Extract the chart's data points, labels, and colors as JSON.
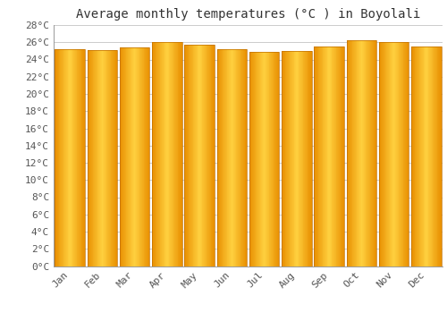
{
  "title": "Average monthly temperatures (°C ) in Boyolali",
  "months": [
    "Jan",
    "Feb",
    "Mar",
    "Apr",
    "May",
    "Jun",
    "Jul",
    "Aug",
    "Sep",
    "Oct",
    "Nov",
    "Dec"
  ],
  "values": [
    25.2,
    25.1,
    25.4,
    26.0,
    25.7,
    25.2,
    24.9,
    25.0,
    25.5,
    26.2,
    26.0,
    25.5
  ],
  "ylim": [
    0,
    28
  ],
  "yticks": [
    0,
    2,
    4,
    6,
    8,
    10,
    12,
    14,
    16,
    18,
    20,
    22,
    24,
    26,
    28
  ],
  "bar_color_center": "#FFD060",
  "bar_color_edge": "#E89000",
  "background_color": "#FFFFFF",
  "grid_color": "#CCCCCC",
  "title_fontsize": 10,
  "tick_fontsize": 8,
  "title_font": "monospace",
  "bar_gap": 0.08,
  "n_gradient_bands": 40
}
